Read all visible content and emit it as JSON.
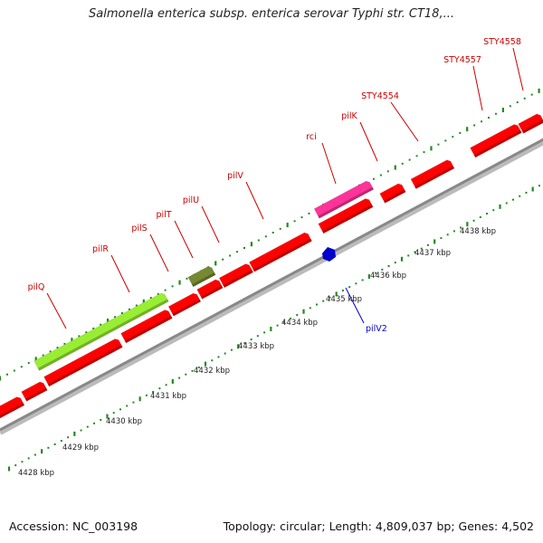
{
  "title": "Salmonella enterica subsp. enterica serovar Typhi str. CT18,...",
  "footer": {
    "accession": "Accession: NC_003198",
    "summary": "Topology: circular; Length: 4,809,037 bp; Genes: 4,502"
  },
  "colors": {
    "gene": "#ff0000",
    "gene_highlight_magenta": "#ff3399",
    "gene_highlight_lime": "#99ee33",
    "gene_highlight_olive": "#778833",
    "feature_blue": "#0000cc",
    "backbone": "#888888",
    "tick_green": "#228822",
    "label_red": "#cc0000",
    "label_blue": "#0000cc"
  },
  "scale_ticks": [
    "4428 kbp",
    "4429 kbp",
    "4430 kbp",
    "4431 kbp",
    "4432 kbp",
    "4433 kbp",
    "4434 kbp",
    "4435 kbp",
    "4436 kbp",
    "4437 kbp",
    "4438 kbp"
  ],
  "upper_gene_labels": [
    "pilQ",
    "pilR",
    "pilS",
    "pilT",
    "pilU",
    "pilV",
    "rci",
    "pilK",
    "STY4554",
    "STY4557",
    "STY4558"
  ],
  "lower_gene_labels": [
    "pilV2"
  ]
}
